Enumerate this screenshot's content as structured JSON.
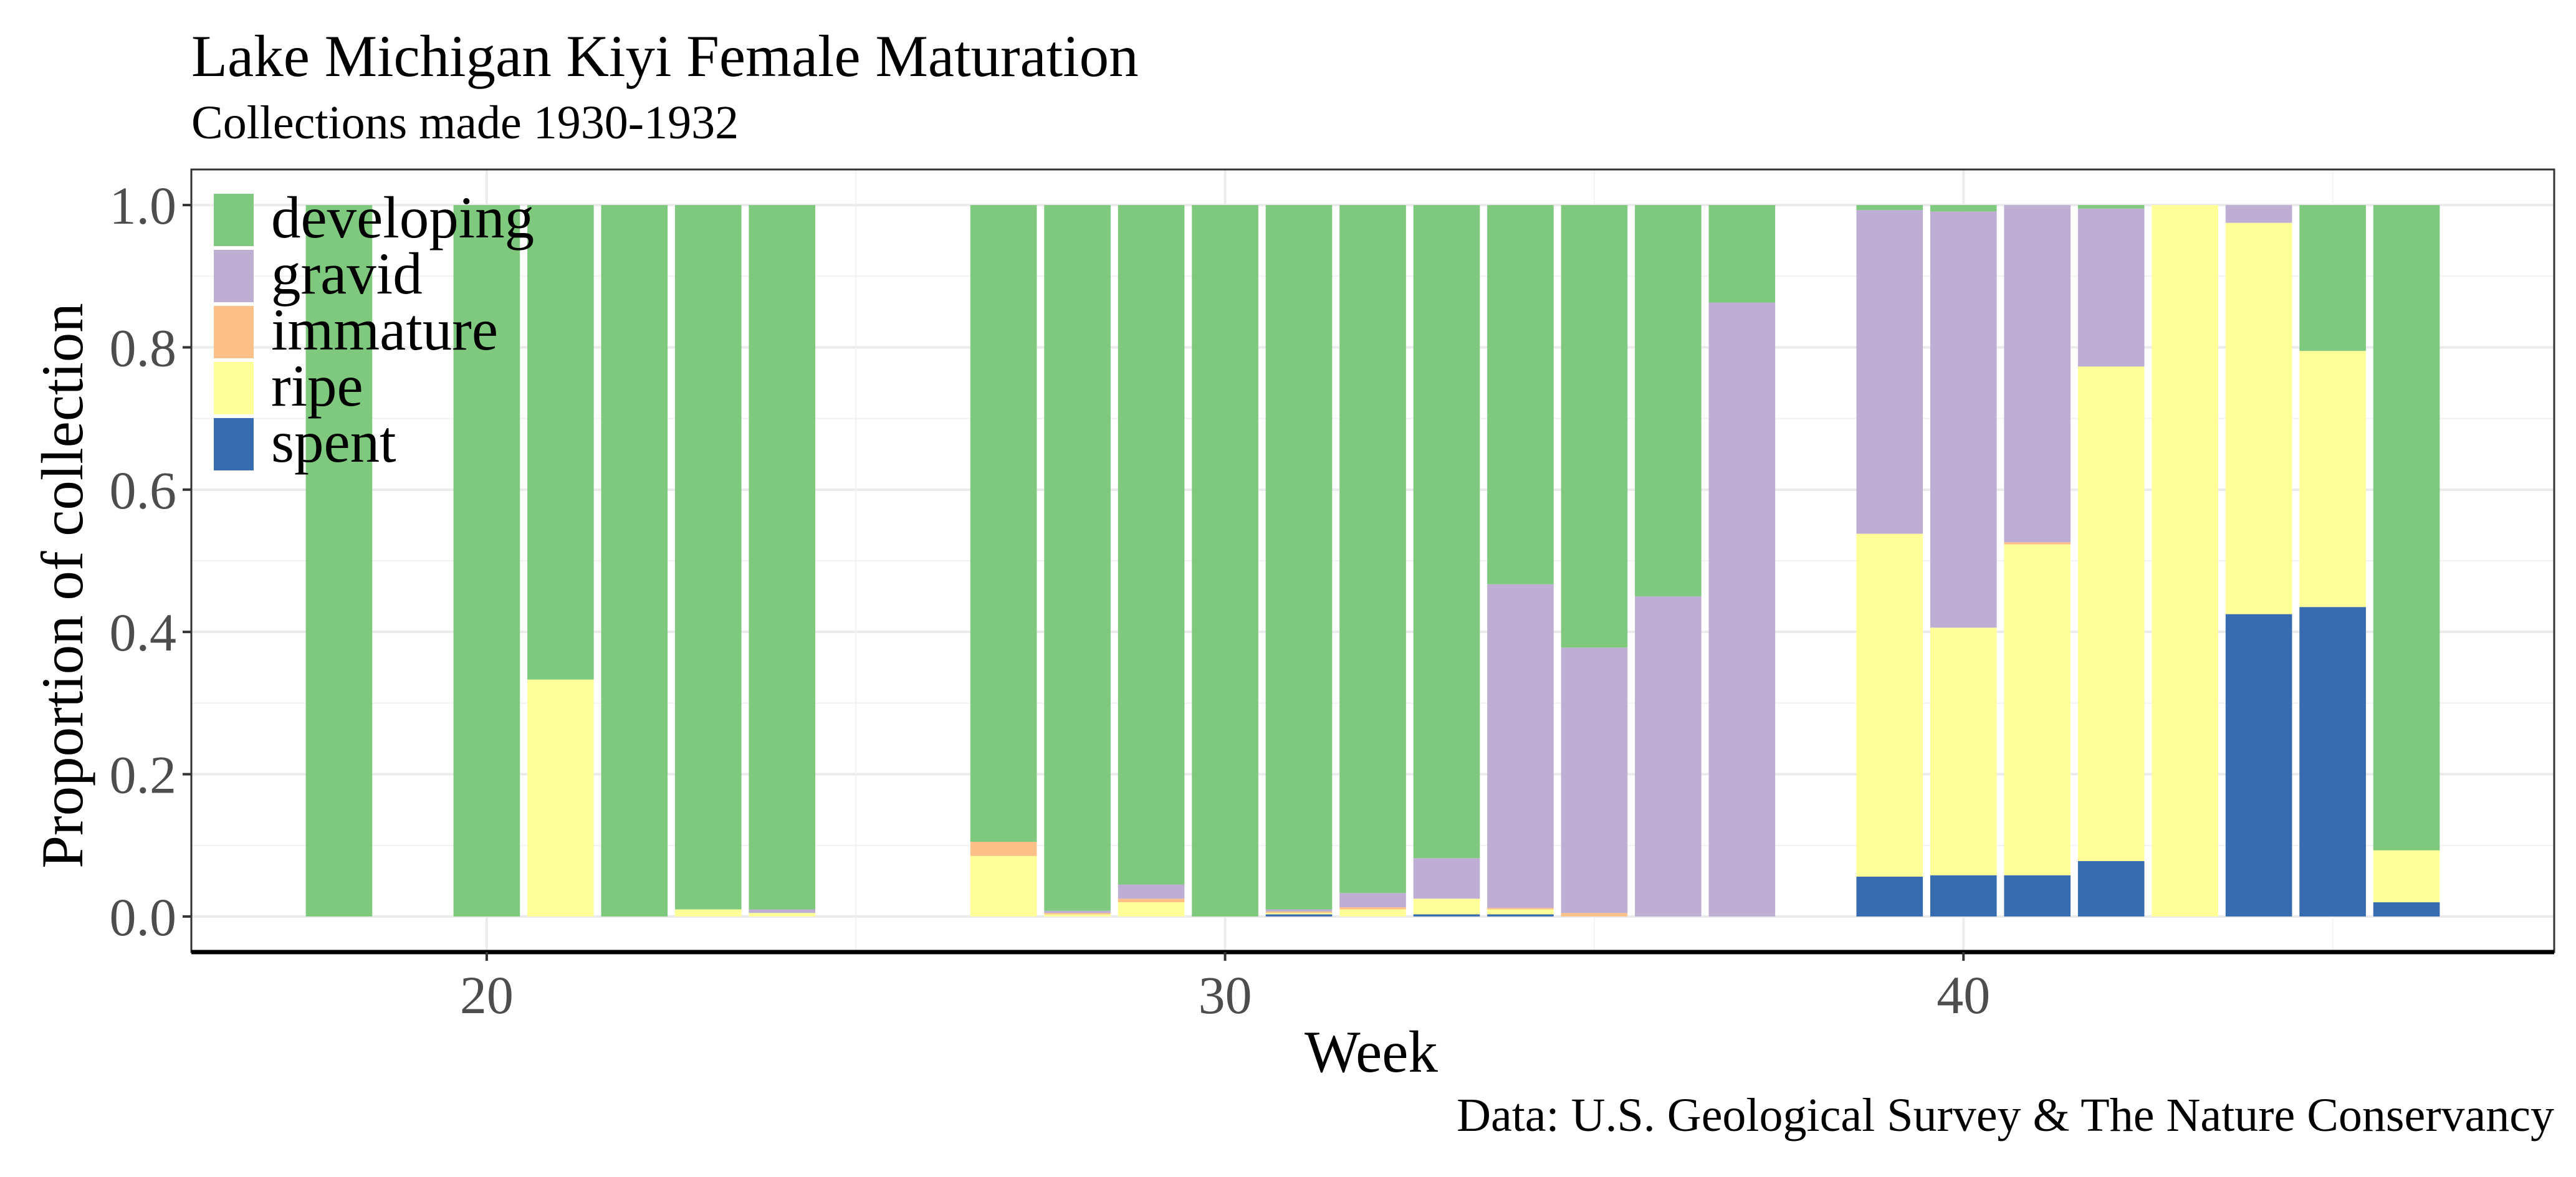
{
  "chart_data": {
    "type": "bar",
    "stacked": true,
    "title": "Lake Michigan Kiyi Female Maturation",
    "subtitle": "Collections made 1930-1932",
    "caption": "Data: U.S. Geological Survey & The Nature Conservancy",
    "xlabel": "Week",
    "ylabel": "Proportion of collection",
    "xlim": [
      16,
      48
    ],
    "ylim": [
      -0.05,
      1.05
    ],
    "x_ticks": [
      20,
      30,
      40
    ],
    "y_ticks": [
      0.0,
      0.2,
      0.4,
      0.6,
      0.8,
      1.0
    ],
    "y_tick_labels": [
      "0.0",
      "0.2",
      "0.4",
      "0.6",
      "0.8",
      "1.0"
    ],
    "grid": true,
    "legend_position": "top-left",
    "series": [
      {
        "name": "spent",
        "color": "#386CB0"
      },
      {
        "name": "ripe",
        "color": "#FFFF99"
      },
      {
        "name": "immature",
        "color": "#FDC086"
      },
      {
        "name": "gravid",
        "color": "#BEAED4"
      },
      {
        "name": "developing",
        "color": "#7FC97F"
      }
    ],
    "legend_order": [
      "developing",
      "gravid",
      "immature",
      "ripe",
      "spent"
    ],
    "bars": [
      {
        "week": 18,
        "spent": 0,
        "ripe": 0,
        "immature": 0,
        "gravid": 0,
        "developing": 1.0
      },
      {
        "week": 20,
        "spent": 0,
        "ripe": 0,
        "immature": 0,
        "gravid": 0,
        "developing": 1.0
      },
      {
        "week": 21,
        "spent": 0,
        "ripe": 0.333,
        "immature": 0,
        "gravid": 0,
        "developing": 0.667
      },
      {
        "week": 22,
        "spent": 0,
        "ripe": 0,
        "immature": 0,
        "gravid": 0,
        "developing": 1.0
      },
      {
        "week": 23,
        "spent": 0,
        "ripe": 0.01,
        "immature": 0,
        "gravid": 0,
        "developing": 0.99
      },
      {
        "week": 24,
        "spent": 0,
        "ripe": 0.005,
        "immature": 0,
        "gravid": 0.005,
        "developing": 0.99
      },
      {
        "week": 27,
        "spent": 0,
        "ripe": 0.085,
        "immature": 0.02,
        "gravid": 0,
        "developing": 0.895
      },
      {
        "week": 28,
        "spent": 0,
        "ripe": 0.003,
        "immature": 0.002,
        "gravid": 0.003,
        "developing": 0.992
      },
      {
        "week": 29,
        "spent": 0,
        "ripe": 0.02,
        "immature": 0.005,
        "gravid": 0.02,
        "developing": 0.955
      },
      {
        "week": 30,
        "spent": 0,
        "ripe": 0,
        "immature": 0,
        "gravid": 0,
        "developing": 1.0
      },
      {
        "week": 31,
        "spent": 0.003,
        "ripe": 0.002,
        "immature": 0.002,
        "gravid": 0.003,
        "developing": 0.99
      },
      {
        "week": 32,
        "spent": 0,
        "ripe": 0.01,
        "immature": 0.003,
        "gravid": 0.02,
        "developing": 0.967
      },
      {
        "week": 33,
        "spent": 0.003,
        "ripe": 0.022,
        "immature": 0,
        "gravid": 0.057,
        "developing": 0.918
      },
      {
        "week": 34,
        "spent": 0.003,
        "ripe": 0.007,
        "immature": 0.002,
        "gravid": 0.455,
        "developing": 0.533
      },
      {
        "week": 35,
        "spent": 0,
        "ripe": 0,
        "immature": 0.005,
        "gravid": 0.373,
        "developing": 0.622
      },
      {
        "week": 36,
        "spent": 0,
        "ripe": 0,
        "immature": 0,
        "gravid": 0.45,
        "developing": 0.55
      },
      {
        "week": 37,
        "spent": 0,
        "ripe": 0,
        "immature": 0,
        "gravid": 0.863,
        "developing": 0.137
      },
      {
        "week": 39,
        "spent": 0.056,
        "ripe": 0.482,
        "immature": 0,
        "gravid": 0.455,
        "developing": 0.007
      },
      {
        "week": 40,
        "spent": 0.058,
        "ripe": 0.348,
        "immature": 0,
        "gravid": 0.585,
        "developing": 0.009
      },
      {
        "week": 41,
        "spent": 0.058,
        "ripe": 0.465,
        "immature": 0.003,
        "gravid": 0.474,
        "developing": 0
      },
      {
        "week": 42,
        "spent": 0.078,
        "ripe": 0.695,
        "immature": 0,
        "gravid": 0.222,
        "developing": 0.005
      },
      {
        "week": 43,
        "spent": 0,
        "ripe": 1.0,
        "immature": 0,
        "gravid": 0,
        "developing": 0
      },
      {
        "week": 44,
        "spent": 0.425,
        "ripe": 0.55,
        "immature": 0,
        "gravid": 0.025,
        "developing": 0
      },
      {
        "week": 45,
        "spent": 0.435,
        "ripe": 0.36,
        "immature": 0,
        "gravid": 0,
        "developing": 0.205
      },
      {
        "week": 46,
        "spent": 0.02,
        "ripe": 0.073,
        "immature": 0,
        "gravid": 0,
        "developing": 0.907
      }
    ]
  }
}
